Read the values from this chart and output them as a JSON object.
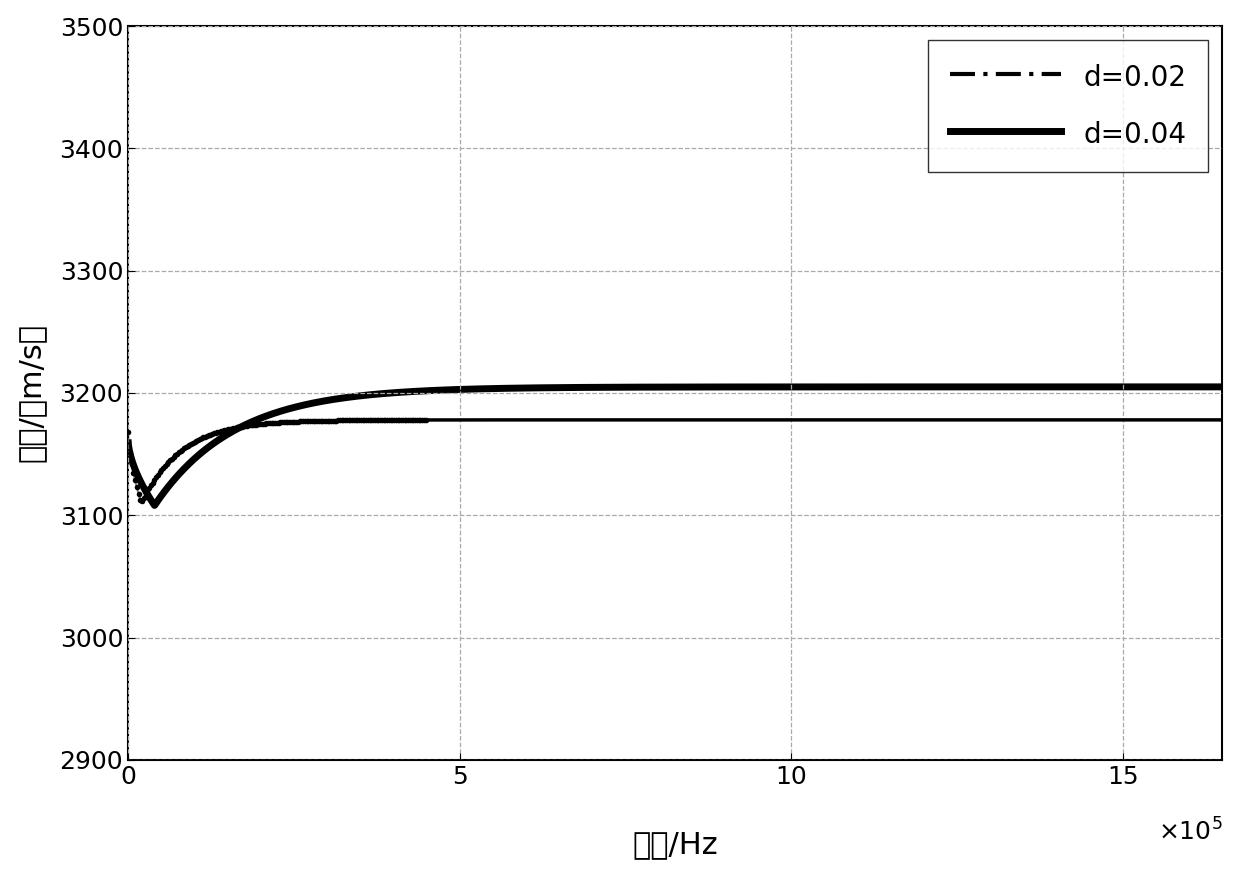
{
  "title": "",
  "xlabel": "频率/Hz",
  "ylabel": "波速/（m/s）",
  "xlim": [
    0,
    1650000.0
  ],
  "ylim": [
    2900,
    3500
  ],
  "yticks": [
    2900,
    3000,
    3100,
    3200,
    3300,
    3400,
    3500
  ],
  "xticks": [
    0,
    500000,
    1000000,
    1500000
  ],
  "xtick_labels": [
    "0",
    "5",
    "10",
    "15"
  ],
  "grid_color": "#aaaaaa",
  "background_color": "#ffffff",
  "line_color": "#000000",
  "legend_labels": [
    "d=0.02",
    "d=0.04"
  ],
  "d002_asymptote": 3178,
  "d004_asymptote": 3205,
  "d002_min": 3110,
  "d004_min": 3108,
  "d002_start": 3168,
  "d004_start": 3162,
  "d002_fmin": 20000,
  "d004_fmin": 40000,
  "d002_tau": 60000,
  "d004_tau": 120000,
  "font_size": 20,
  "tick_fontsize": 18,
  "label_fontsize": 22
}
